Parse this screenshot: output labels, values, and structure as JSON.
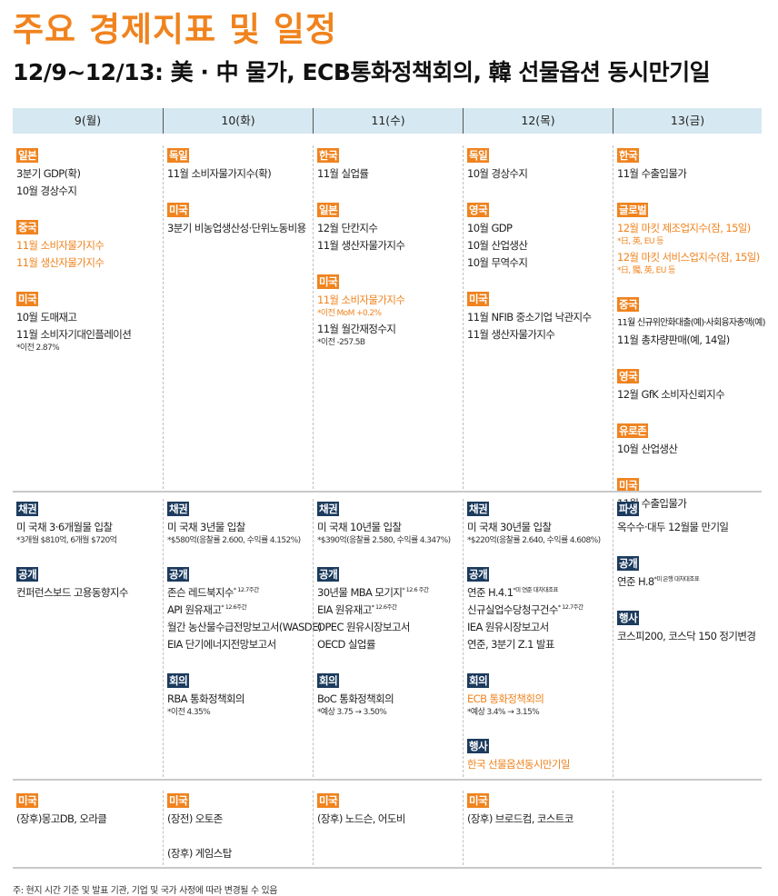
{
  "title": "주요 경제지표 및 일정",
  "subtitle": "12/9~12/13: 美 · 中 물가, ECB통화정책회의, 韓 선물옵션 동시만기일",
  "days": [
    "9(월)",
    "10(화)",
    "11(수)",
    "12(목)",
    "13(금)"
  ],
  "sections": [
    {
      "columns": [
        [
          {
            "tag": "일본",
            "color": "orange",
            "items": [
              {
                "text": "3분기 GDP(확)"
              },
              {
                "text": "10월 경상수지"
              }
            ]
          },
          {
            "tag": "중국",
            "color": "orange",
            "items": [
              {
                "text": "11월 소비자물가지수",
                "hl": true
              },
              {
                "text": "11월 생산자물가지수",
                "hl": true
              }
            ]
          },
          {
            "tag": "미국",
            "color": "orange",
            "items": [
              {
                "text": "10월 도매재고"
              },
              {
                "text": "11월 소비자기대인플레이션"
              },
              {
                "text": "*이전 2.87%",
                "note": true
              }
            ]
          }
        ],
        [
          {
            "tag": "독일",
            "color": "orange",
            "items": [
              {
                "text": "11월 소비자물가지수(확)"
              }
            ]
          },
          {
            "tag": "미국",
            "color": "orange",
            "items": [
              {
                "text": "3분기 비농업생산성·단위노동비용"
              }
            ]
          }
        ],
        [
          {
            "tag": "한국",
            "color": "orange",
            "items": [
              {
                "text": "11월 실업률"
              }
            ]
          },
          {
            "tag": "일본",
            "color": "orange",
            "items": [
              {
                "text": "12월 단칸지수"
              },
              {
                "text": "11월 생산자물가지수"
              }
            ]
          },
          {
            "tag": "미국",
            "color": "orange",
            "items": [
              {
                "text": "11월 소비자물가지수",
                "hl": true
              },
              {
                "text": "*이전 MoM +0.2%",
                "note": true,
                "hl": true
              },
              {
                "text": "11월 월간재정수지"
              },
              {
                "text": "*이전 -257.5B",
                "note": true
              }
            ]
          }
        ],
        [
          {
            "tag": "독일",
            "color": "orange",
            "items": [
              {
                "text": "10월 경상수지"
              }
            ]
          },
          {
            "tag": "영국",
            "color": "orange",
            "items": [
              {
                "text": "10월 GDP"
              },
              {
                "text": "10월 산업생산"
              },
              {
                "text": "10월 무역수지"
              }
            ]
          },
          {
            "tag": "미국",
            "color": "orange",
            "items": [
              {
                "text": "11월 NFIB 중소기업 낙관지수"
              },
              {
                "text": "11월 생산자물가지수"
              }
            ]
          }
        ],
        [
          {
            "tag": "한국",
            "color": "orange",
            "items": [
              {
                "text": "11월 수출입물가"
              }
            ]
          },
          {
            "tag": "글로벌",
            "color": "orange",
            "items": [
              {
                "text": "12월 마킷 제조업지수(잠, 15일)",
                "hl": true
              },
              {
                "text": "*日, 英, EU 등",
                "note": true,
                "hl": true
              },
              {
                "text": "12월 마킷 서비스업지수(잠, 15일)",
                "hl": true
              },
              {
                "text": "*日, 獨, 英, EU 등",
                "note": true,
                "hl": true
              }
            ]
          },
          {
            "tag": "중국",
            "color": "orange",
            "items": [
              {
                "text": "11월 신규위안화대출(예)·사회융자총액(예)",
                "sm": true
              },
              {
                "text": "11월 총차량판매(예, 14일)"
              }
            ]
          },
          {
            "tag": "영국",
            "color": "orange",
            "items": [
              {
                "text": "12월 GfK 소비자신뢰지수"
              }
            ]
          },
          {
            "tag": "유로존",
            "color": "orange",
            "items": [
              {
                "text": "10월 산업생산"
              }
            ]
          },
          {
            "tag": "미국",
            "color": "orange",
            "items": [
              {
                "text": "11월 수출입물가"
              }
            ]
          }
        ]
      ]
    },
    {
      "columns": [
        [
          {
            "tag": "채권",
            "color": "navy",
            "items": [
              {
                "text": "미 국채 3·6개월물 입찰"
              },
              {
                "text": "*3개월 $810억, 6개월 $720억",
                "note": true
              }
            ]
          },
          {
            "tag": "공개",
            "color": "navy",
            "items": [
              {
                "text": "컨퍼런스보드 고용동향지수"
              }
            ]
          }
        ],
        [
          {
            "tag": "채권",
            "color": "navy",
            "items": [
              {
                "text": "미 국채 3년물 입찰"
              },
              {
                "text": "*$580억(응찰률 2.600, 수익률 4.152%)",
                "note": true
              }
            ]
          },
          {
            "tag": "공개",
            "color": "navy",
            "items": [
              {
                "text": "존슨 레드북지수",
                "sup": "* 12.7주간"
              },
              {
                "text": "API 원유재고",
                "sup": "* 12.6주간"
              },
              {
                "text": "월간 농산물수급전망보고서(WASDE)"
              },
              {
                "text": "EIA 단기에너지전망보고서"
              }
            ]
          },
          {
            "tag": "회의",
            "color": "navy",
            "items": [
              {
                "text": "RBA 통화정책회의"
              },
              {
                "text": "*이전 4.35%",
                "note": true
              }
            ]
          }
        ],
        [
          {
            "tag": "채권",
            "color": "navy",
            "items": [
              {
                "text": "미 국채 10년물 입찰"
              },
              {
                "text": "*$390억(응찰률 2.580, 수익률 4.347%)",
                "note": true
              }
            ]
          },
          {
            "tag": "공개",
            "color": "navy",
            "items": [
              {
                "text": "30년물 MBA 모기지",
                "sup": "* 12.6 주간"
              },
              {
                "text": "EIA 원유재고",
                "sup": "* 12.6주간"
              },
              {
                "text": "OPEC 원유시장보고서"
              },
              {
                "text": "OECD 실업률"
              }
            ]
          },
          {
            "tag": "회의",
            "color": "navy",
            "items": [
              {
                "text": "BoC 통화정책회의"
              },
              {
                "text": "*예상 3.75 → 3.50%",
                "note": true
              }
            ]
          }
        ],
        [
          {
            "tag": "채권",
            "color": "navy",
            "items": [
              {
                "text": "미 국채 30년물 입찰"
              },
              {
                "text": "*$220억(응찰률 2.640, 수익률 4.608%)",
                "note": true
              }
            ]
          },
          {
            "tag": "공개",
            "color": "navy",
            "items": [
              {
                "text": "연준 H.4.1",
                "sup": "*미 연준 대차대조표"
              },
              {
                "text": "신규실업수당청구건수",
                "sup": "* 12.7주간"
              },
              {
                "text": "IEA 원유시장보고서"
              },
              {
                "text": "연준, 3분기 Z.1 발표"
              }
            ]
          },
          {
            "tag": "회의",
            "color": "navy",
            "items": [
              {
                "text": "ECB 통화정책회의",
                "hl": true
              },
              {
                "text": "*예상 3.4% → 3.15%",
                "note": true
              }
            ]
          },
          {
            "tag": "행사",
            "color": "navy",
            "items": [
              {
                "text": "한국 선물옵션동시만기일",
                "hl": true
              }
            ]
          }
        ],
        [
          {
            "tag": "파생",
            "color": "navy",
            "items": [
              {
                "text": "옥수수·대두 12월물 만기일"
              }
            ]
          },
          {
            "tag": "공개",
            "color": "navy",
            "items": [
              {
                "text": "연준 H.8",
                "sup": "*미 은행 대차대조표"
              }
            ]
          },
          {
            "tag": "행사",
            "color": "navy",
            "items": [
              {
                "text": "코스피200, 코스닥 150 정기변경"
              }
            ]
          }
        ]
      ]
    },
    {
      "columns": [
        [
          {
            "tag": "미국",
            "color": "orange",
            "items": [
              {
                "text": "(장후)몽고DB, 오라클"
              }
            ]
          }
        ],
        [
          {
            "tag": "미국",
            "color": "orange",
            "items": [
              {
                "text": "(장전) 오토존"
              },
              {
                "text": "",
                "spacer": true
              },
              {
                "text": "(장후) 게임스탑"
              }
            ]
          }
        ],
        [
          {
            "tag": "미국",
            "color": "orange",
            "items": [
              {
                "text": "(장후) 노드슨, 어도비"
              }
            ]
          }
        ],
        [
          {
            "tag": "미국",
            "color": "orange",
            "items": [
              {
                "text": "(장후) 브로드컴, 코스트코"
              }
            ]
          }
        ],
        []
      ]
    }
  ],
  "footer": "주: 현지 시간 기준 및 발표 기관, 기업 및 국가 사정에 따라 변경될 수 있음"
}
